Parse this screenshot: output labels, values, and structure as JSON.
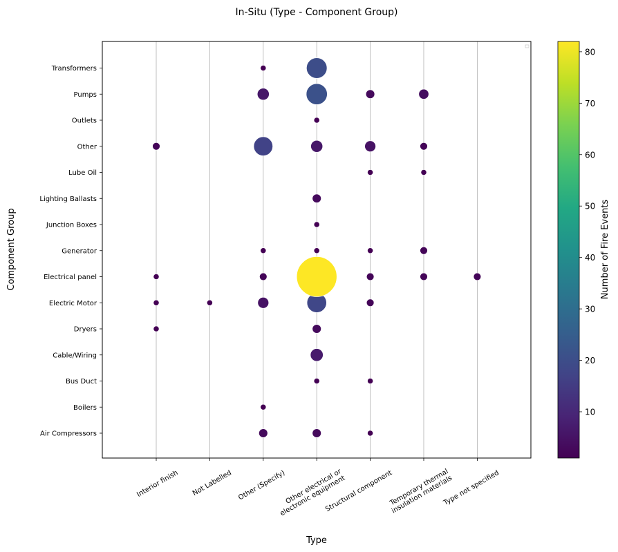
{
  "chart_data": {
    "type": "scatter",
    "title": "In-Situ (Type - Component Group)",
    "xlabel": "Type",
    "ylabel": "Component Group",
    "x_categories": [
      "Interior finish",
      "Not Labelled",
      "Other (Specify)",
      "Other electrical or\nelectronic equipment",
      "Structural component",
      "Temporary thermal\ninsulation materials",
      "Type not specified"
    ],
    "y_categories": [
      "Air Compressors",
      "Boilers",
      "Bus Duct",
      "Cable/Wiring",
      "Dryers",
      "Electric Motor",
      "Electrical panel",
      "Generator",
      "Junction Boxes",
      "Lighting Ballasts",
      "Lube Oil",
      "Other",
      "Outlets",
      "Pumps",
      "Transformers"
    ],
    "grid": "x-only",
    "colorbar": {
      "label": "Number of Fire Events",
      "ticks": [
        10,
        20,
        30,
        40,
        50,
        60,
        70,
        80
      ],
      "range": [
        1,
        82
      ],
      "colormap": "viridis"
    },
    "points": [
      {
        "x": "Other (Specify)",
        "y": "Transformers",
        "value": 1
      },
      {
        "x": "Other electrical or\nelectronic equipment",
        "y": "Transformers",
        "value": 20
      },
      {
        "x": "Other (Specify)",
        "y": "Pumps",
        "value": 6
      },
      {
        "x": "Other electrical or\nelectronic equipment",
        "y": "Pumps",
        "value": 21
      },
      {
        "x": "Structural component",
        "y": "Pumps",
        "value": 3
      },
      {
        "x": "Temporary thermal\ninsulation materials",
        "y": "Pumps",
        "value": 4
      },
      {
        "x": "Other electrical or\nelectronic equipment",
        "y": "Outlets",
        "value": 1
      },
      {
        "x": "Interior finish",
        "y": "Other",
        "value": 2
      },
      {
        "x": "Other (Specify)",
        "y": "Other",
        "value": 17
      },
      {
        "x": "Other electrical or\nelectronic equipment",
        "y": "Other",
        "value": 6
      },
      {
        "x": "Structural component",
        "y": "Other",
        "value": 5
      },
      {
        "x": "Temporary thermal\ninsulation materials",
        "y": "Other",
        "value": 2
      },
      {
        "x": "Structural component",
        "y": "Lube Oil",
        "value": 1
      },
      {
        "x": "Temporary thermal\ninsulation materials",
        "y": "Lube Oil",
        "value": 1
      },
      {
        "x": "Other electrical or\nelectronic equipment",
        "y": "Lighting Ballasts",
        "value": 3
      },
      {
        "x": "Other electrical or\nelectronic equipment",
        "y": "Junction Boxes",
        "value": 1
      },
      {
        "x": "Other (Specify)",
        "y": "Generator",
        "value": 1
      },
      {
        "x": "Other electrical or\nelectronic equipment",
        "y": "Generator",
        "value": 1
      },
      {
        "x": "Structural component",
        "y": "Generator",
        "value": 1
      },
      {
        "x": "Temporary thermal\ninsulation materials",
        "y": "Generator",
        "value": 2
      },
      {
        "x": "Interior finish",
        "y": "Electrical panel",
        "value": 1
      },
      {
        "x": "Other (Specify)",
        "y": "Electrical panel",
        "value": 2
      },
      {
        "x": "Other electrical or\nelectronic equipment",
        "y": "Electrical panel",
        "value": 82
      },
      {
        "x": "Structural component",
        "y": "Electrical panel",
        "value": 2
      },
      {
        "x": "Temporary thermal\ninsulation materials",
        "y": "Electrical panel",
        "value": 2
      },
      {
        "x": "Type not specified",
        "y": "Electrical panel",
        "value": 2
      },
      {
        "x": "Interior finish",
        "y": "Electric Motor",
        "value": 1
      },
      {
        "x": "Not Labelled",
        "y": "Electric Motor",
        "value": 1
      },
      {
        "x": "Other (Specify)",
        "y": "Electric Motor",
        "value": 5
      },
      {
        "x": "Other electrical or\nelectronic equipment",
        "y": "Electric Motor",
        "value": 18
      },
      {
        "x": "Structural component",
        "y": "Electric Motor",
        "value": 2
      },
      {
        "x": "Interior finish",
        "y": "Dryers",
        "value": 1
      },
      {
        "x": "Other electrical or\nelectronic equipment",
        "y": "Dryers",
        "value": 3
      },
      {
        "x": "Other electrical or\nelectronic equipment",
        "y": "Cable/Wiring",
        "value": 7
      },
      {
        "x": "Other electrical or\nelectronic equipment",
        "y": "Bus Duct",
        "value": 1
      },
      {
        "x": "Structural component",
        "y": "Bus Duct",
        "value": 1
      },
      {
        "x": "Other (Specify)",
        "y": "Boilers",
        "value": 1
      },
      {
        "x": "Other (Specify)",
        "y": "Air Compressors",
        "value": 3
      },
      {
        "x": "Other electrical or\nelectronic equipment",
        "y": "Air Compressors",
        "value": 3
      },
      {
        "x": "Structural component",
        "y": "Air Compressors",
        "value": 1
      }
    ]
  }
}
